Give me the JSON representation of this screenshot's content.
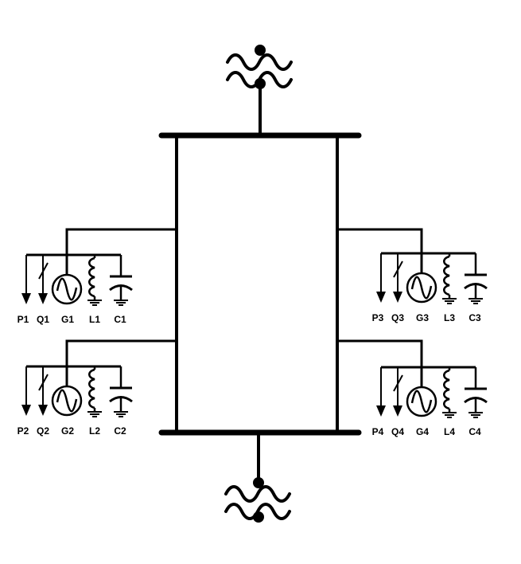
{
  "diagram": {
    "colors": {
      "line": "#000000",
      "background": "#ffffff"
    },
    "transformers": [
      {
        "name": "transformer-top",
        "icon": "three-phase-transformer-icon"
      },
      {
        "name": "transformer-bottom",
        "icon": "three-phase-transformer-icon"
      }
    ],
    "groups": [
      {
        "id": "1",
        "labels": [
          "P1",
          "Q1",
          "G1",
          "L1",
          "C1"
        ]
      },
      {
        "id": "2",
        "labels": [
          "P2",
          "Q2",
          "G2",
          "L2",
          "C2"
        ]
      },
      {
        "id": "3",
        "labels": [
          "P3",
          "Q3",
          "G3",
          "L3",
          "C3"
        ]
      },
      {
        "id": "4",
        "labels": [
          "P4",
          "Q4",
          "G4",
          "L4",
          "C4"
        ]
      }
    ]
  }
}
